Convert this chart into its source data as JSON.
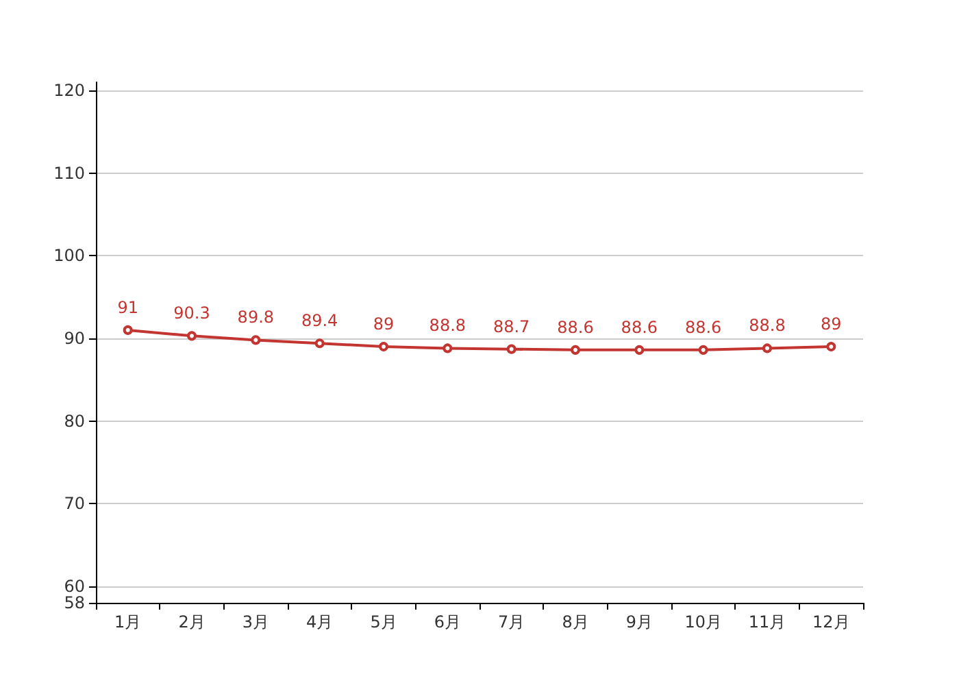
{
  "chart_data": {
    "type": "line",
    "categories": [
      "1月",
      "2月",
      "3月",
      "4月",
      "5月",
      "6月",
      "7月",
      "8月",
      "9月",
      "10月",
      "11月",
      "12月"
    ],
    "series": [
      {
        "color": "#c23531",
        "values": [
          91,
          90.3,
          89.8,
          89.4,
          89,
          88.8,
          88.7,
          88.6,
          88.6,
          88.6,
          88.8,
          89
        ]
      }
    ],
    "ylim": [
      58,
      121
    ],
    "yticks": [
      58,
      60,
      70,
      80,
      90,
      100,
      110,
      120
    ],
    "grid": "y",
    "marker": "circle",
    "data_labels": true
  }
}
